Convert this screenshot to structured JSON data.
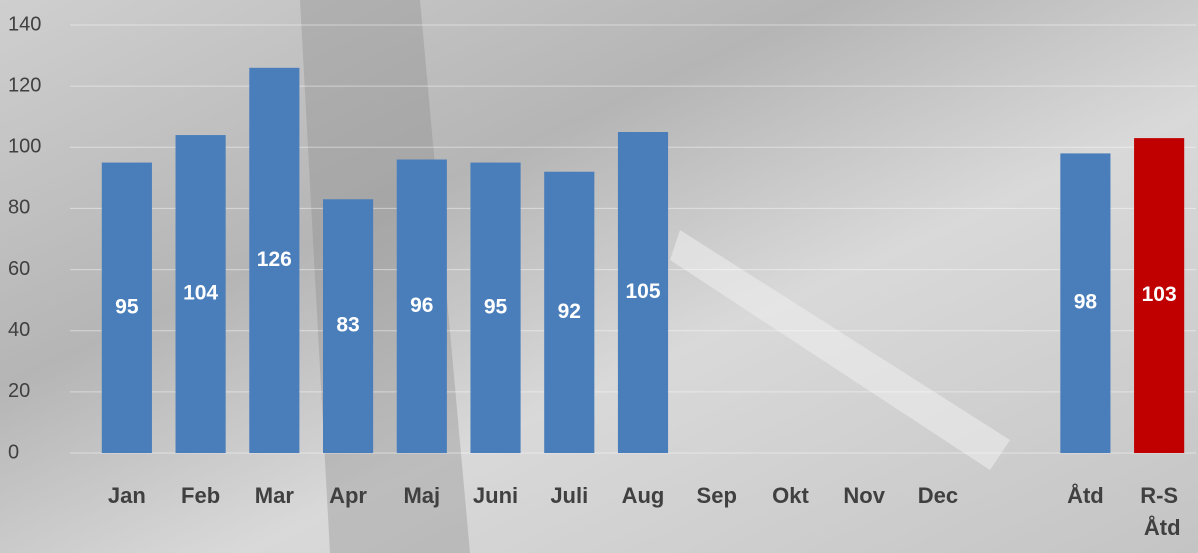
{
  "chart_data": {
    "type": "bar",
    "categories": [
      "Jan",
      "Feb",
      "Mar",
      "Apr",
      "Maj",
      "Juni",
      "Juli",
      "Aug",
      "Sep",
      "Okt",
      "Nov",
      "Dec",
      null,
      "Åtd",
      "R-S Åtd"
    ],
    "values": [
      95,
      104,
      126,
      83,
      96,
      95,
      92,
      105,
      null,
      null,
      null,
      null,
      null,
      98,
      103
    ],
    "colors": [
      "#4a7ebb",
      "#4a7ebb",
      "#4a7ebb",
      "#4a7ebb",
      "#4a7ebb",
      "#4a7ebb",
      "#4a7ebb",
      "#4a7ebb",
      "#4a7ebb",
      "#4a7ebb",
      "#4a7ebb",
      "#4a7ebb",
      "#4a7ebb",
      "#4a7ebb",
      "#c00000"
    ],
    "ylim": [
      0,
      140
    ],
    "yticks": [
      0,
      20,
      40,
      60,
      80,
      100,
      120,
      140
    ],
    "grid": true
  }
}
